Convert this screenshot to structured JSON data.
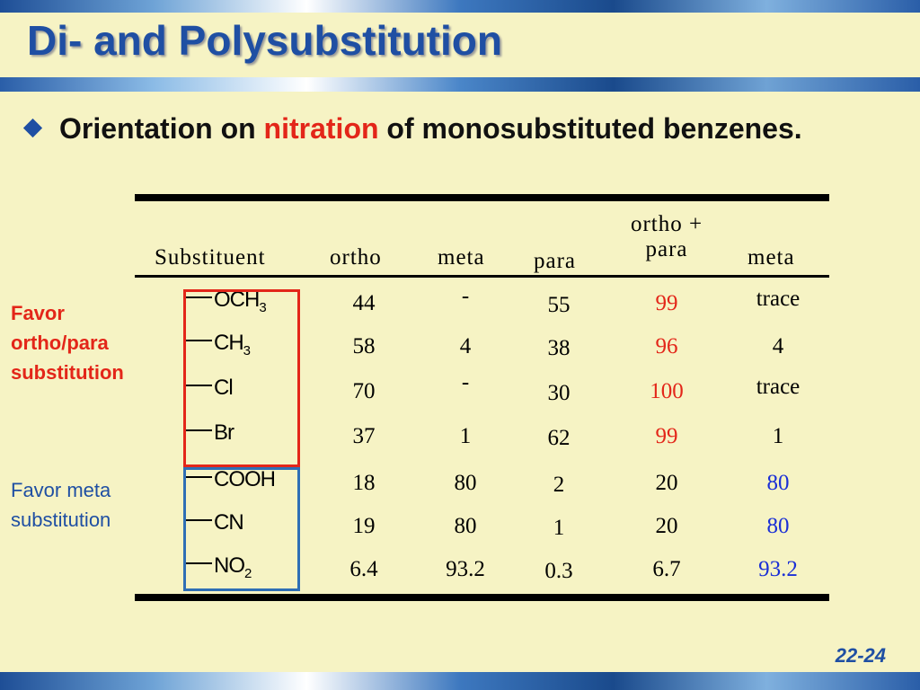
{
  "slide": {
    "title": "Di- and Polysubstitution",
    "bullet": {
      "before": "Orientation on ",
      "highlight": "nitration",
      "after": " of monosubstituted benzenes."
    },
    "page_number": "22-24"
  },
  "side_labels": {
    "ortho_para": [
      "Favor",
      "ortho/para",
      "substitution"
    ],
    "meta": [
      "Favor meta",
      "substitution"
    ]
  },
  "table": {
    "headers": {
      "substituent": "Substituent",
      "ortho": "ortho",
      "meta": "meta",
      "para": "para",
      "ortho_para_line1": "ortho +",
      "ortho_para_line2": "para",
      "meta2": "meta"
    },
    "rows": [
      {
        "substituent": "OCH",
        "subscript": "3",
        "ortho": "44",
        "meta": "-",
        "para": "55",
        "ortho_para": "99",
        "meta_total": "trace"
      },
      {
        "substituent": "CH",
        "subscript": "3",
        "ortho": "58",
        "meta": "4",
        "para": "38",
        "ortho_para": "96",
        "meta_total": "4"
      },
      {
        "substituent": "Cl",
        "subscript": "",
        "ortho": "70",
        "meta": "-",
        "para": "30",
        "ortho_para": "100",
        "meta_total": "trace"
      },
      {
        "substituent": "Br",
        "subscript": "",
        "ortho": "37",
        "meta": "1",
        "para": "62",
        "ortho_para": "99",
        "meta_total": "1"
      },
      {
        "substituent": "COOH",
        "subscript": "",
        "ortho": "18",
        "meta": "80",
        "para": "2",
        "ortho_para": "20",
        "meta_total": "80"
      },
      {
        "substituent": "CN",
        "subscript": "",
        "ortho": "19",
        "meta": "80",
        "para": "1",
        "ortho_para": "20",
        "meta_total": "80"
      },
      {
        "substituent": "NO",
        "subscript": "2",
        "ortho": "6.4",
        "meta": "93.2",
        "para": "0.3",
        "ortho_para": "6.7",
        "meta_total": "93.2"
      }
    ]
  },
  "colors": {
    "title": "#1f4fa3",
    "highlight_red": "#e32619",
    "highlight_blue": "#1a2fd6",
    "background": "#f6f3c4"
  }
}
